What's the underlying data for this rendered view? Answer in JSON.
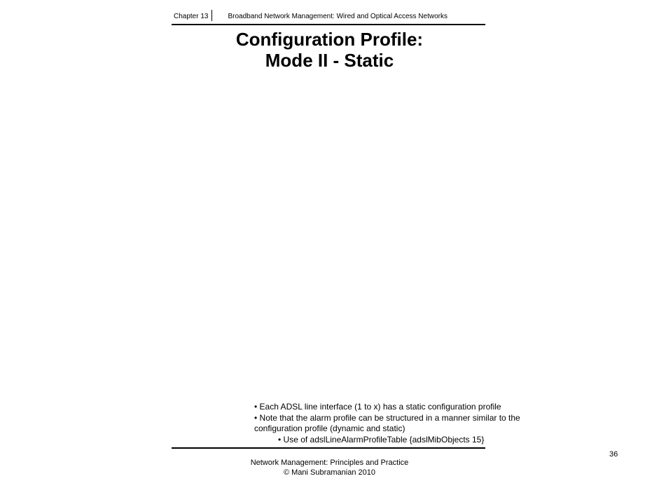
{
  "header": {
    "chapter": "Chapter 13",
    "courseTitle": "Broadband Network Management: Wired and Optical Access Networks"
  },
  "mainTitle": {
    "line1": "Configuration Profile:",
    "line2": "Mode II - Static"
  },
  "bullets": {
    "item1": "• Each ADSL line interface (1 to x) has a static configuration profile",
    "item2": "• Note that the alarm profile can be structured in a manner similar to the",
    "item2cont": "configuration profile (dynamic and static)",
    "subitem": "•   Use of adslLineAlarmProfileTable {adslMibObjects 15}"
  },
  "footer": {
    "line1": "Network Management: Principles and Practice",
    "line2": "© Mani Subramanian 2010",
    "pageNumber": "36"
  },
  "colors": {
    "background": "#ffffff",
    "text": "#000000",
    "divider": "#000000"
  },
  "fonts": {
    "headerSize": 10,
    "titleSize": 26,
    "bulletSize": 12,
    "footerSize": 11
  }
}
